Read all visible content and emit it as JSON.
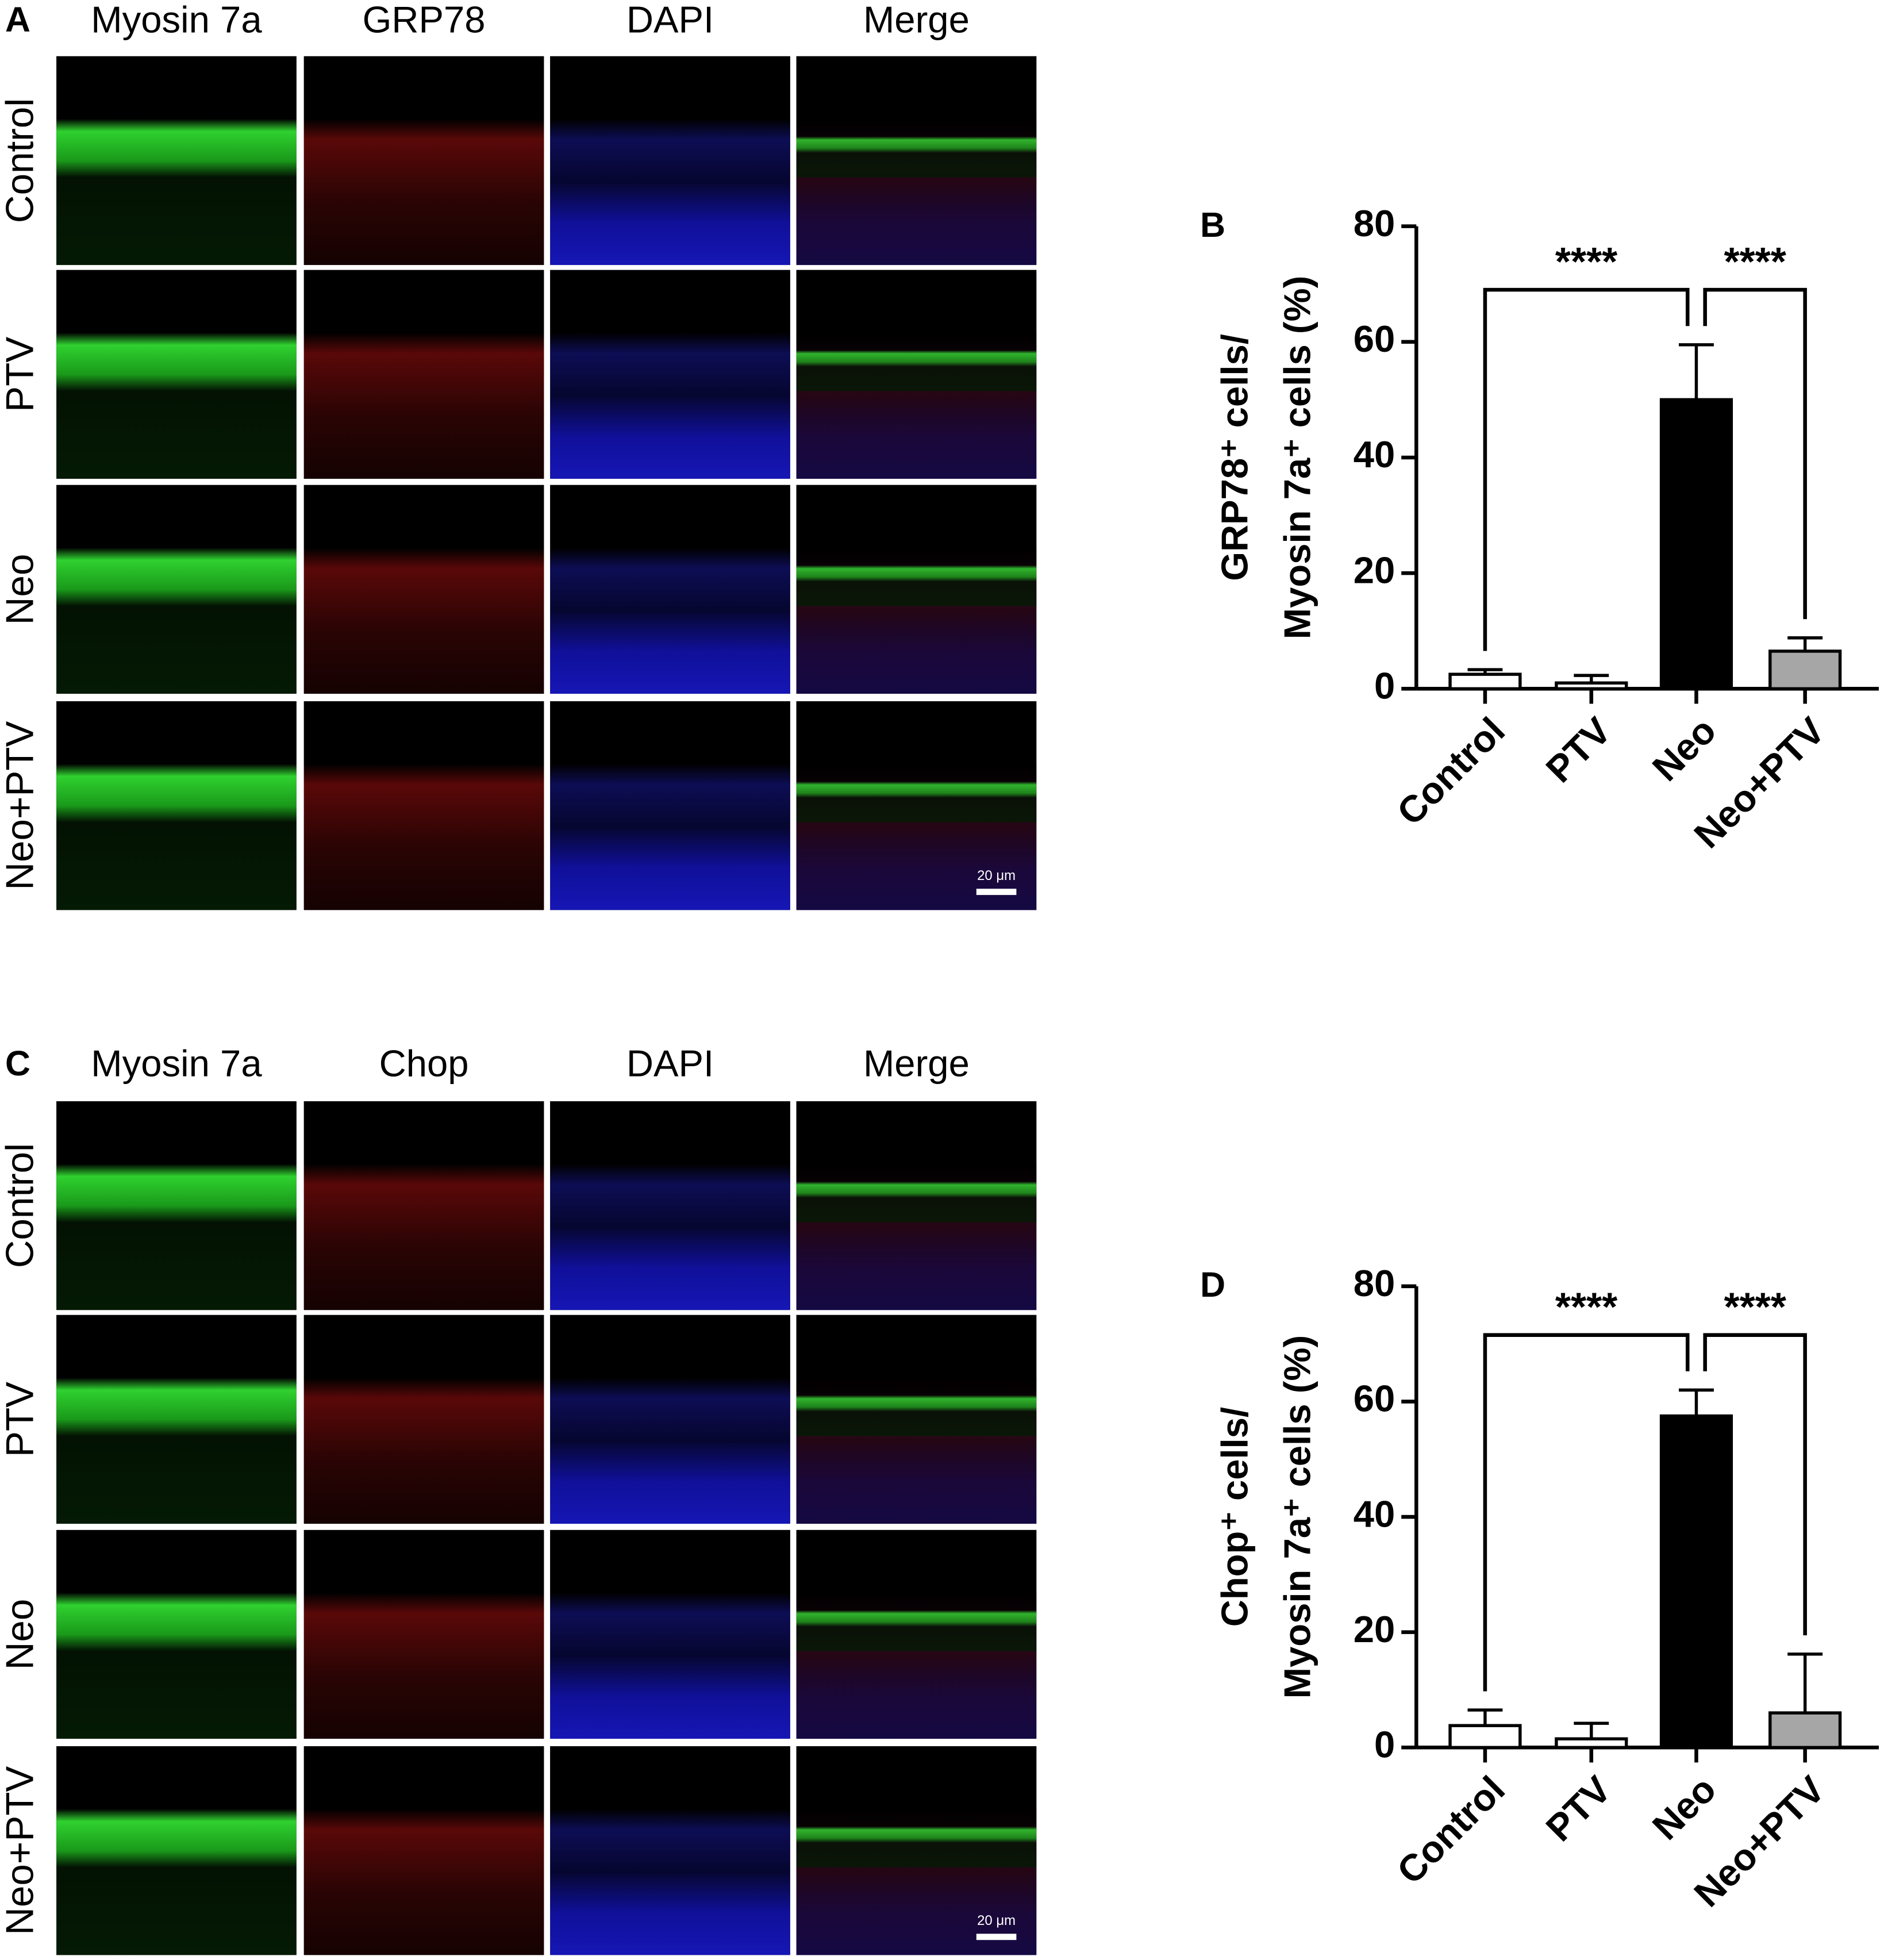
{
  "panels": [
    {
      "label": "A",
      "columns": [
        "Myosin 7a",
        "GRP78",
        "DAPI",
        "Merge"
      ],
      "rows": [
        "Control",
        "PTV",
        "Neo",
        "Neo+PTV"
      ],
      "scale_bar": "20 μm"
    },
    {
      "label": "C",
      "columns": [
        "Myosin 7a",
        "Chop",
        "DAPI",
        "Merge"
      ],
      "rows": [
        "Control",
        "PTV",
        "Neo",
        "Neo+PTV"
      ],
      "scale_bar": "20 μm"
    }
  ],
  "chart_data": [
    {
      "type": "bar",
      "label": "B",
      "ylabel": [
        "GRP78⁺ cells/",
        "Myosin 7a⁺ cells (%)"
      ],
      "categories": [
        "Control",
        "PTV",
        "Neo",
        "Neo+PTV"
      ],
      "values": [
        2.5,
        1.0,
        50,
        6.5
      ],
      "errors": [
        0.8,
        1.3,
        9.5,
        2.3
      ],
      "colors": [
        "#ffffff",
        "#ffffff",
        "#000000",
        "#a6a6a6"
      ],
      "ylim": [
        0,
        80
      ],
      "yticks": [
        0,
        20,
        40,
        60,
        80
      ],
      "comparisons": [
        {
          "groups": [
            "Control",
            "Neo"
          ],
          "label": "****"
        },
        {
          "groups": [
            "Neo",
            "Neo+PTV"
          ],
          "label": "****"
        }
      ]
    },
    {
      "type": "bar",
      "label": "D",
      "ylabel": [
        "Chop⁺ cells/",
        "Myosin 7a⁺ cells (%)"
      ],
      "categories": [
        "Control",
        "PTV",
        "Neo",
        "Neo+PTV"
      ],
      "values": [
        3.8,
        1.5,
        57.5,
        6
      ],
      "errors": [
        2.7,
        2.7,
        4.5,
        10.2
      ],
      "colors": [
        "#ffffff",
        "#ffffff",
        "#000000",
        "#a6a6a6"
      ],
      "ylim": [
        0,
        80
      ],
      "yticks": [
        0,
        20,
        40,
        60,
        80
      ],
      "comparisons": [
        {
          "groups": [
            "Control",
            "Neo"
          ],
          "label": "****"
        },
        {
          "groups": [
            "Neo",
            "Neo+PTV"
          ],
          "label": "****"
        }
      ]
    }
  ]
}
